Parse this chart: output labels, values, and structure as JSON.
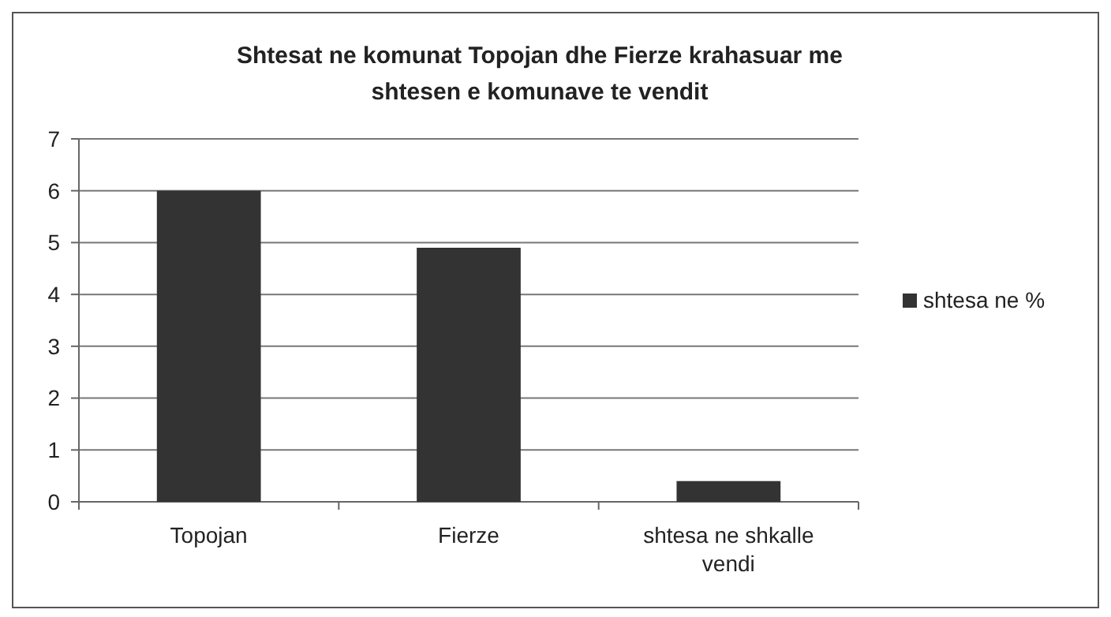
{
  "chart_data": {
    "type": "bar",
    "title": "Shtesat ne komunat Topojan dhe Fierze krahasuar me shtesen e komunave te vendit",
    "categories": [
      "Topojan",
      "Fierze",
      "shtesa ne shkalle vendi"
    ],
    "series": [
      {
        "name": "shtesa ne %",
        "color": "#333333",
        "values": [
          6,
          4.9,
          0.4
        ]
      }
    ],
    "ylim": [
      0,
      7
    ],
    "yticks": [
      0,
      1,
      2,
      3,
      4,
      5,
      6,
      7
    ],
    "grid": "y",
    "legend": "right"
  }
}
